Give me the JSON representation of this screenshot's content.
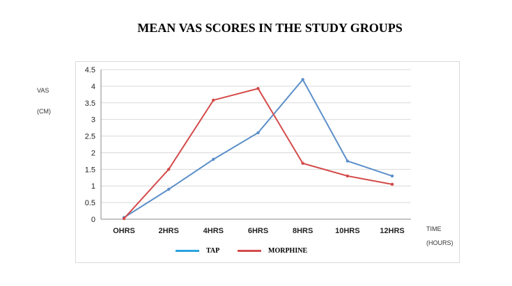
{
  "chart_data": {
    "type": "line",
    "title": "MEAN VAS SCORES IN THE STUDY GROUPS",
    "ylabel_line1": "VAS",
    "ylabel_line2": "(CM)",
    "xlabel_line1": "TIME",
    "xlabel_line2": "(HOURS)",
    "categories": [
      "OHRS",
      "2HRS",
      "4HRS",
      "6HRS",
      "8HRS",
      "10HRS",
      "12HRS"
    ],
    "yticks": [
      "0",
      "0.5",
      "1",
      "1.5",
      "2",
      "2.5",
      "3",
      "3.5",
      "4",
      "4.5"
    ],
    "ylim": [
      0,
      4.5
    ],
    "grid": true,
    "legend_position": "bottom",
    "series": [
      {
        "name": "TAP",
        "color": "#5b8fc9",
        "legend_color": "#29a3e0",
        "values": [
          0.05,
          0.9,
          1.8,
          2.6,
          4.2,
          1.75,
          1.3
        ]
      },
      {
        "name": "MORPHINE",
        "color": "#d44a4a",
        "legend_color": "#d44a4a",
        "values": [
          0.02,
          1.5,
          3.58,
          3.93,
          1.68,
          1.3,
          1.05
        ]
      }
    ]
  }
}
